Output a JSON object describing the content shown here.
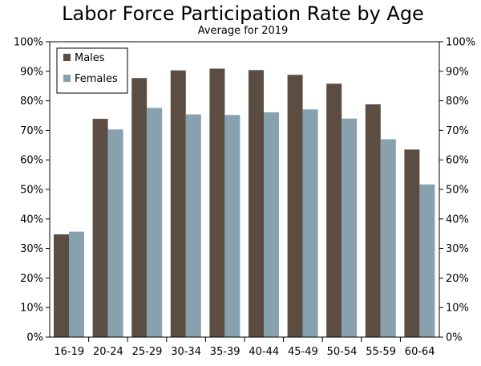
{
  "chart_data": {
    "type": "bar",
    "title": "Labor Force Participation Rate by Age",
    "subtitle": "Average for 2019",
    "xlabel": "",
    "ylabel": "",
    "categories": [
      "16-19",
      "20-24",
      "25-29",
      "30-34",
      "35-39",
      "40-44",
      "45-49",
      "50-54",
      "55-59",
      "60-64"
    ],
    "series": [
      {
        "name": "Males",
        "color": "#5c4d42",
        "values": [
          34.8,
          73.9,
          87.7,
          90.3,
          90.9,
          90.4,
          88.8,
          85.8,
          78.8,
          63.5
        ]
      },
      {
        "name": "Females",
        "color": "#87a1af",
        "values": [
          35.7,
          70.3,
          77.6,
          75.4,
          75.2,
          76.1,
          77.1,
          74.0,
          67.0,
          51.7
        ]
      }
    ],
    "ylim": [
      0,
      100
    ],
    "yticks": [
      "0%",
      "10%",
      "20%",
      "30%",
      "40%",
      "50%",
      "60%",
      "70%",
      "80%",
      "90%",
      "100%"
    ],
    "grid": false,
    "legend_position": "top-left",
    "secondary_y_axis": true
  }
}
